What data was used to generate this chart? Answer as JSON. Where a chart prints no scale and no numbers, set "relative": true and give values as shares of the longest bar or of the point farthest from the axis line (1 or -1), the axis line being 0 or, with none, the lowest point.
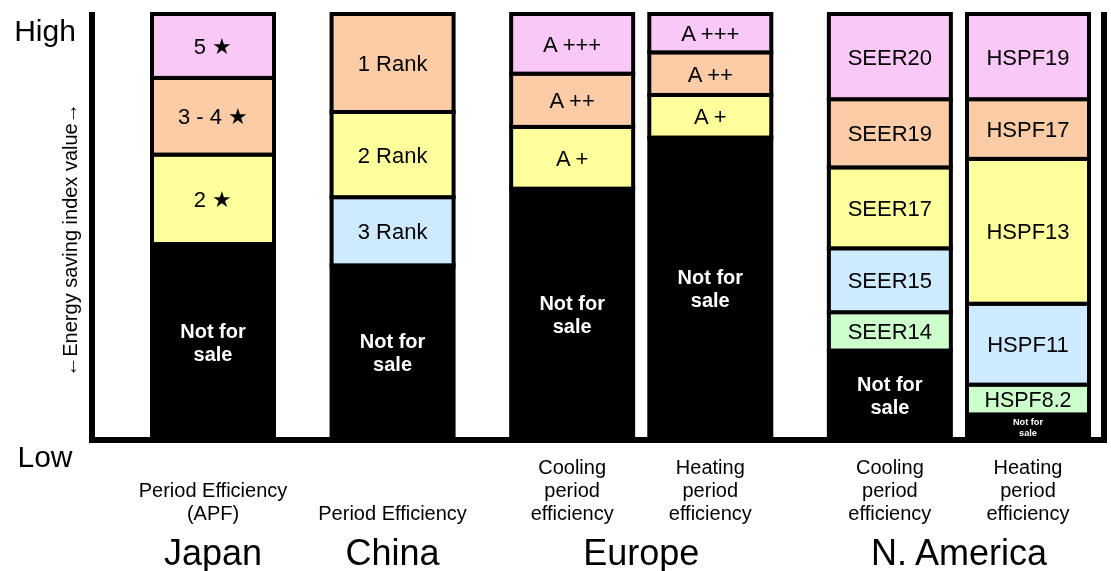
{
  "chart_data": {
    "type": "bar",
    "stacked": true,
    "relative": true,
    "ylabel": "←Energy saving index value→",
    "categories": [
      "Period Efficiency\n(APF)",
      "Period Efficiency",
      "Cooling\nperiod\nefficiency",
      "Heating\nperiod\nefficiency",
      "Cooling\nperiod\nefficiency",
      "Heating\nperiod\nefficiency"
    ],
    "series": [
      {
        "color": "#000000",
        "values": [
          0.46,
          0.41,
          0.59,
          0.71,
          0.21,
          0.06
        ]
      },
      {
        "colors": [
          "#ffff9c",
          "#cdeaff",
          "#ffff9c",
          "#ffff9c",
          "#ccffcc",
          "#ccffcc"
        ],
        "values": [
          0.21,
          0.16,
          0.145,
          0.1,
          0.09,
          0.07
        ]
      },
      {
        "colors": [
          "#fbcca6",
          "#ffff9c",
          "#fbcca6",
          "#fbcca6",
          "#cdeaff",
          "#cdeaff"
        ],
        "values": [
          0.18,
          0.2,
          0.125,
          0.1,
          0.15,
          0.19
        ]
      },
      {
        "colors": [
          "#f9c8f6",
          "#fbcca6",
          "#f9c8f6",
          "#f9c8f6",
          "#ffff9c",
          "#ffff9c"
        ],
        "values": [
          0.15,
          0.23,
          0.14,
          0.09,
          0.19,
          0.34
        ]
      },
      {
        "colors": [
          null,
          null,
          null,
          null,
          "#fbcca6",
          "#fbcca6"
        ],
        "values": [
          null,
          null,
          null,
          null,
          0.16,
          0.14
        ]
      },
      {
        "colors": [
          null,
          null,
          null,
          null,
          "#f9c8f6",
          "#f9c8f6"
        ],
        "values": [
          null,
          null,
          null,
          null,
          0.2,
          0.2
        ]
      }
    ],
    "annotations": [
      "High",
      "Low",
      "Japan",
      "China",
      "Europe",
      "N. America",
      "Not for\nsale",
      "2 ★",
      "3 - 4 ★",
      "5 ★",
      "Not for\nsale",
      "3 Rank",
      "2 Rank",
      "1 Rank",
      "Not for\nsale",
      "A +",
      "A ++",
      "A +++",
      "Not for\nsale",
      "A +",
      "A ++",
      "A +++",
      "Not for\nsale",
      "SEER14",
      "SEER15",
      "SEER17",
      "SEER19",
      "SEER20",
      "Not for\nsale",
      "HSPF8.2",
      "HSPF11",
      "HSPF13",
      "HSPF17",
      "HSPF19"
    ]
  }
}
